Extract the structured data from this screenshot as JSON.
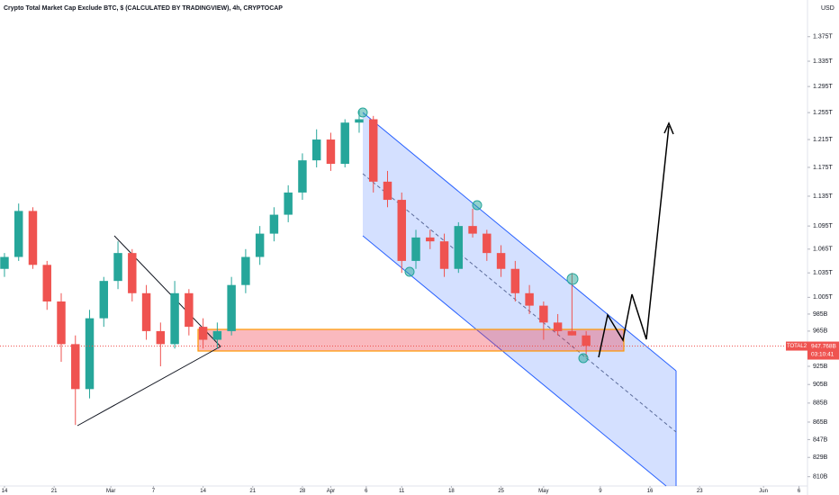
{
  "chart_data": {
    "type": "candlestick",
    "title": "Crypto Total Market Cap Exclude BTC, $ (CALCULATED BY TRADINGVIEW), 4h, CRYPTOCAP",
    "currency": "USD",
    "x": [
      0,
      2,
      4,
      6,
      8,
      10,
      12,
      14,
      16,
      18,
      20,
      22,
      24,
      26,
      28,
      30,
      32,
      34,
      36,
      38,
      40,
      42,
      44,
      46,
      48,
      50,
      52,
      54,
      56,
      58,
      60,
      62,
      64,
      66,
      68,
      70,
      72,
      74,
      76,
      78,
      80,
      82
    ],
    "open": [
      1040,
      1055,
      1115,
      1045,
      1000,
      950,
      900,
      980,
      1025,
      1060,
      1010,
      965,
      950,
      1010,
      970,
      955,
      965,
      1020,
      1055,
      1085,
      1110,
      1140,
      1185,
      1215,
      1180,
      1240,
      1245,
      1155,
      1130,
      1050,
      1080,
      1075,
      1040,
      1095,
      1085,
      1060,
      1040,
      1010,
      995,
      975,
      965,
      960
    ],
    "high": [
      1060,
      1125,
      1120,
      1050,
      1010,
      960,
      990,
      1030,
      1075,
      1065,
      1020,
      975,
      1025,
      1015,
      980,
      975,
      1030,
      1065,
      1095,
      1120,
      1150,
      1195,
      1230,
      1225,
      1245,
      1258,
      1250,
      1170,
      1140,
      1090,
      1090,
      1085,
      1100,
      1118,
      1090,
      1070,
      1050,
      1020,
      1000,
      985,
      1035,
      965
    ],
    "low": [
      1030,
      1050,
      1040,
      990,
      930,
      862,
      890,
      970,
      1015,
      1000,
      955,
      925,
      945,
      960,
      945,
      945,
      960,
      1010,
      1045,
      1075,
      1100,
      1130,
      1175,
      1170,
      1175,
      1225,
      1140,
      1120,
      1035,
      1040,
      1065,
      1030,
      1035,
      1080,
      1050,
      1030,
      1000,
      985,
      955,
      960,
      960,
      935
    ],
    "close": [
      1055,
      1115,
      1045,
      1000,
      950,
      900,
      980,
      1025,
      1060,
      1010,
      965,
      950,
      1010,
      970,
      955,
      965,
      1020,
      1055,
      1085,
      1110,
      1140,
      1185,
      1215,
      1180,
      1240,
      1245,
      1155,
      1130,
      1050,
      1080,
      1075,
      1040,
      1095,
      1085,
      1060,
      1040,
      1010,
      995,
      975,
      965,
      960,
      948
    ],
    "up_color": "#26a69a",
    "down_color": "#ef5350",
    "log_scale": true,
    "ylim": [
      801,
      1437
    ],
    "yticks": [
      {
        "value": 1375,
        "label": "1.375T"
      },
      {
        "value": 1335,
        "label": "1.335T"
      },
      {
        "value": 1295,
        "label": "1.295T"
      },
      {
        "value": 1255,
        "label": "1.255T"
      },
      {
        "value": 1215,
        "label": "1.215T"
      },
      {
        "value": 1175,
        "label": "1.175T"
      },
      {
        "value": 1135,
        "label": "1.135T"
      },
      {
        "value": 1095,
        "label": "1.095T"
      },
      {
        "value": 1065,
        "label": "1.065T"
      },
      {
        "value": 1035,
        "label": "1.035T"
      },
      {
        "value": 1005,
        "label": "1.005T"
      },
      {
        "value": 985,
        "label": "985B"
      },
      {
        "value": 965,
        "label": "965B"
      },
      {
        "value": 925,
        "label": "925B"
      },
      {
        "value": 905,
        "label": "905B"
      },
      {
        "value": 885,
        "label": "885B"
      },
      {
        "value": 865,
        "label": "865B"
      },
      {
        "value": 847,
        "label": "847B"
      },
      {
        "value": 829,
        "label": "829B"
      },
      {
        "value": 810,
        "label": "810B"
      }
    ],
    "xlim": [
      -0.63,
      113.2
    ],
    "xticks": [
      {
        "value": 0,
        "label": "14"
      },
      {
        "value": 7,
        "label": "21"
      },
      {
        "value": 15,
        "label": "Mar"
      },
      {
        "value": 21,
        "label": "7"
      },
      {
        "value": 28,
        "label": "14"
      },
      {
        "value": 35,
        "label": "21"
      },
      {
        "value": 42,
        "label": "28"
      },
      {
        "value": 46,
        "label": "Apr"
      },
      {
        "value": 51,
        "label": "6"
      },
      {
        "value": 56,
        "label": "11"
      },
      {
        "value": 63,
        "label": "18"
      },
      {
        "value": 70,
        "label": "25"
      },
      {
        "value": 76,
        "label": "May"
      },
      {
        "value": 84,
        "label": "9"
      },
      {
        "value": 91,
        "label": "16"
      },
      {
        "value": 98,
        "label": "23"
      },
      {
        "value": 107,
        "label": "Jun"
      },
      {
        "value": 112,
        "label": "6"
      }
    ],
    "current": {
      "name": "TOTAL2",
      "value": 947.768,
      "label": "947.768B",
      "countdown": "03:10:41"
    },
    "grid": false
  }
}
